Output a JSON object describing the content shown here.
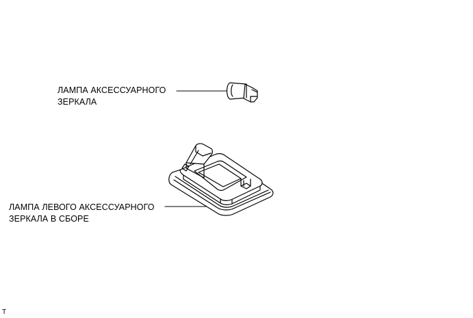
{
  "labels": {
    "bulb": {
      "line1": "ЛАМПА АКСЕССУАРНОГО",
      "line2": "ЗЕРКАЛА"
    },
    "assembly": {
      "line1": "ЛАМПА ЛЕВОГО АКСЕССУАРНОГО",
      "line2": "ЗЕРКАЛА В СБОРЕ"
    }
  },
  "corner_code": "T",
  "colors": {
    "line": "#000000",
    "background": "#ffffff"
  }
}
